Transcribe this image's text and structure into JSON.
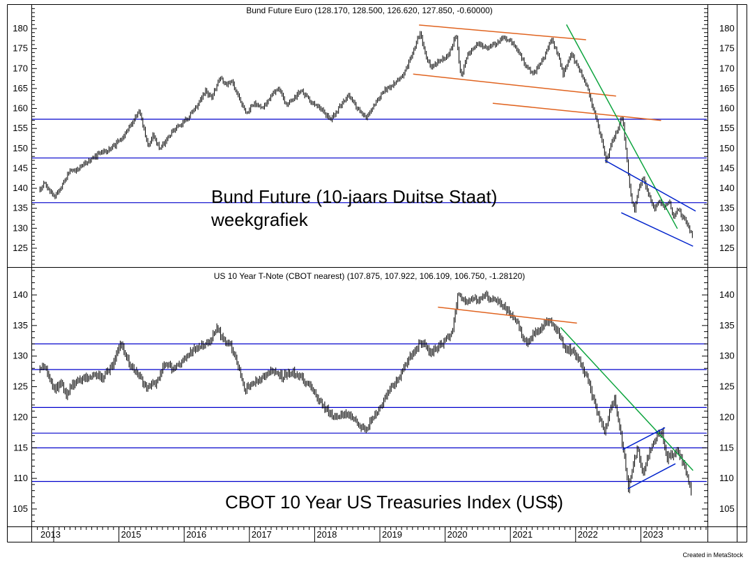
{
  "colors": {
    "background": "#ffffff",
    "price_bars": "#000000",
    "support_line": "#0000cc",
    "trend_orange": "#e0631f",
    "trend_green": "#0da43e",
    "channel_blue": "#0022cc",
    "frame": "#000000",
    "text": "#000000"
  },
  "footer": {
    "credit": "Created in MetaStock"
  },
  "x_axis": {
    "year_labels": [
      "2013",
      "2015",
      "2016",
      "2017",
      "2018",
      "2019",
      "2020",
      "2021",
      "2022",
      "2023"
    ]
  },
  "chart_data": [
    {
      "type": "line",
      "name": "Bund Future Euro",
      "title": "Bund Future Euro (128.170, 128.500, 126.620, 127.850, -0.60000)",
      "label_line1": "Bund Future (10-jaars Duitse Staat)",
      "label_line2": "weekgrafiek",
      "quote": {
        "open": "128.170",
        "high": "128.500",
        "low": "126.620",
        "close": "127.850",
        "change": "-0.60000"
      },
      "ylabel": "",
      "xlabel": "",
      "ylim": [
        121,
        185
      ],
      "x_range": [
        2013.79,
        2023.79
      ],
      "y_ticks": [
        125,
        130,
        135,
        140,
        145,
        150,
        155,
        160,
        165,
        170,
        175,
        180
      ],
      "support_lines": [
        157.3,
        147.6,
        136.4
      ],
      "trendlines": [
        {
          "color": "orange",
          "x1": 2019.6,
          "y1": 180.9,
          "x2": 2022.16,
          "y2": 177.2
        },
        {
          "color": "orange",
          "x1": 2019.51,
          "y1": 168.6,
          "x2": 2022.62,
          "y2": 163.1
        },
        {
          "color": "orange",
          "x1": 2020.73,
          "y1": 161.3,
          "x2": 2023.31,
          "y2": 157.0
        },
        {
          "color": "green",
          "x1": 2021.86,
          "y1": 181.0,
          "x2": 2023.56,
          "y2": 129.9
        },
        {
          "color": "blue",
          "x1": 2022.45,
          "y1": 147.0,
          "x2": 2023.84,
          "y2": 134.3
        },
        {
          "color": "blue",
          "x1": 2022.7,
          "y1": 133.9,
          "x2": 2023.8,
          "y2": 125.5
        }
      ],
      "points": [
        [
          2013.79,
          140.0
        ],
        [
          2013.86,
          141.3
        ],
        [
          2013.94,
          139.2
        ],
        [
          2014.01,
          137.8
        ],
        [
          2014.1,
          139.5
        ],
        [
          2014.22,
          143.8
        ],
        [
          2014.35,
          144.6
        ],
        [
          2014.5,
          146.5
        ],
        [
          2014.65,
          148.2
        ],
        [
          2014.8,
          149.3
        ],
        [
          2014.95,
          151.0
        ],
        [
          2015.1,
          153.5
        ],
        [
          2015.22,
          157.0
        ],
        [
          2015.31,
          159.3
        ],
        [
          2015.38,
          155.0
        ],
        [
          2015.45,
          150.9
        ],
        [
          2015.53,
          153.4
        ],
        [
          2015.62,
          149.8
        ],
        [
          2015.7,
          151.5
        ],
        [
          2015.8,
          153.8
        ],
        [
          2015.92,
          155.5
        ],
        [
          2016.05,
          157.5
        ],
        [
          2016.2,
          160.5
        ],
        [
          2016.33,
          164.3
        ],
        [
          2016.42,
          162.5
        ],
        [
          2016.55,
          167.8
        ],
        [
          2016.63,
          165.8
        ],
        [
          2016.72,
          167.0
        ],
        [
          2016.82,
          163.5
        ],
        [
          2016.95,
          158.9
        ],
        [
          2017.08,
          161.5
        ],
        [
          2017.2,
          159.8
        ],
        [
          2017.33,
          163.2
        ],
        [
          2017.45,
          165.3
        ],
        [
          2017.55,
          160.8
        ],
        [
          2017.67,
          162.5
        ],
        [
          2017.8,
          164.4
        ],
        [
          2017.95,
          161.5
        ],
        [
          2018.1,
          159.6
        ],
        [
          2018.25,
          157.2
        ],
        [
          2018.4,
          160.8
        ],
        [
          2018.53,
          163.4
        ],
        [
          2018.65,
          160.2
        ],
        [
          2018.78,
          157.6
        ],
        [
          2018.92,
          161.0
        ],
        [
          2019.05,
          164.3
        ],
        [
          2019.2,
          166.2
        ],
        [
          2019.35,
          168.0
        ],
        [
          2019.5,
          173.5
        ],
        [
          2019.62,
          179.3
        ],
        [
          2019.7,
          173.0
        ],
        [
          2019.8,
          170.2
        ],
        [
          2019.92,
          172.0
        ],
        [
          2020.05,
          173.0
        ],
        [
          2020.17,
          178.7
        ],
        [
          2020.24,
          167.8
        ],
        [
          2020.35,
          173.5
        ],
        [
          2020.5,
          176.2
        ],
        [
          2020.63,
          175.2
        ],
        [
          2020.75,
          176.0
        ],
        [
          2020.9,
          177.8
        ],
        [
          2021.0,
          177.0
        ],
        [
          2021.12,
          174.5
        ],
        [
          2021.25,
          170.3
        ],
        [
          2021.35,
          168.8
        ],
        [
          2021.5,
          172.0
        ],
        [
          2021.63,
          177.3
        ],
        [
          2021.73,
          173.5
        ],
        [
          2021.81,
          168.5
        ],
        [
          2021.93,
          173.8
        ],
        [
          2022.03,
          170.5
        ],
        [
          2022.15,
          166.8
        ],
        [
          2022.25,
          161.0
        ],
        [
          2022.33,
          157.0
        ],
        [
          2022.42,
          150.5
        ],
        [
          2022.47,
          146.6
        ],
        [
          2022.55,
          151.5
        ],
        [
          2022.65,
          155.0
        ],
        [
          2022.72,
          158.2
        ],
        [
          2022.78,
          148.0
        ],
        [
          2022.85,
          138.0
        ],
        [
          2022.9,
          134.5
        ],
        [
          2022.98,
          140.5
        ],
        [
          2023.04,
          142.6
        ],
        [
          2023.12,
          138.5
        ],
        [
          2023.2,
          134.9
        ],
        [
          2023.28,
          136.8
        ],
        [
          2023.36,
          135.2
        ],
        [
          2023.44,
          136.4
        ],
        [
          2023.5,
          132.9
        ],
        [
          2023.57,
          134.7
        ],
        [
          2023.64,
          132.9
        ],
        [
          2023.7,
          131.5
        ],
        [
          2023.75,
          129.5
        ],
        [
          2023.79,
          127.85
        ]
      ]
    },
    {
      "type": "line",
      "name": "US 10 Year T-Note (CBOT nearest)",
      "title": "US 10 Year T-Note (CBOT nearest) (107.875, 107.922, 106.109, 106.750, -1.28120)",
      "label_line1": "CBOT 10 Year US Treasuries Index (US$)",
      "label_line2": "",
      "quote": {
        "open": "107.875",
        "high": "107.922",
        "low": "106.109",
        "close": "106.750",
        "change": "-1.28120"
      },
      "ylabel": "",
      "xlabel": "",
      "ylim": [
        102,
        141.5
      ],
      "x_range": [
        2013.79,
        2023.78
      ],
      "y_ticks": [
        105,
        110,
        115,
        120,
        125,
        130,
        135,
        140
      ],
      "support_lines": [
        132.0,
        127.8,
        121.6,
        117.4,
        115.0,
        109.5
      ],
      "trendlines": [
        {
          "color": "orange",
          "x1": 2019.89,
          "y1": 138.0,
          "x2": 2022.02,
          "y2": 135.4
        },
        {
          "color": "green",
          "x1": 2021.77,
          "y1": 134.7,
          "x2": 2023.8,
          "y2": 111.3
        },
        {
          "color": "blue",
          "x1": 2022.72,
          "y1": 114.7,
          "x2": 2023.37,
          "y2": 118.3
        },
        {
          "color": "blue",
          "x1": 2022.8,
          "y1": 108.3,
          "x2": 2023.53,
          "y2": 112.4
        }
      ],
      "points": [
        [
          2013.79,
          127.6
        ],
        [
          2013.87,
          128.4
        ],
        [
          2013.95,
          126.0
        ],
        [
          2014.02,
          124.4
        ],
        [
          2014.1,
          125.8
        ],
        [
          2014.2,
          123.6
        ],
        [
          2014.3,
          125.5
        ],
        [
          2014.45,
          126.2
        ],
        [
          2014.6,
          126.9
        ],
        [
          2014.75,
          126.5
        ],
        [
          2014.9,
          128.3
        ],
        [
          2015.03,
          132.0
        ],
        [
          2015.15,
          129.0
        ],
        [
          2015.3,
          127.0
        ],
        [
          2015.45,
          124.7
        ],
        [
          2015.6,
          126.1
        ],
        [
          2015.72,
          129.0
        ],
        [
          2015.85,
          127.8
        ],
        [
          2015.98,
          129.3
        ],
        [
          2016.1,
          130.5
        ],
        [
          2016.25,
          131.8
        ],
        [
          2016.4,
          132.5
        ],
        [
          2016.5,
          134.5
        ],
        [
          2016.6,
          132.8
        ],
        [
          2016.72,
          131.5
        ],
        [
          2016.85,
          127.5
        ],
        [
          2016.93,
          124.5
        ],
        [
          2017.05,
          125.5
        ],
        [
          2017.2,
          126.6
        ],
        [
          2017.35,
          127.8
        ],
        [
          2017.5,
          126.6
        ],
        [
          2017.65,
          127.5
        ],
        [
          2017.8,
          126.3
        ],
        [
          2017.95,
          125.0
        ],
        [
          2018.08,
          122.5
        ],
        [
          2018.2,
          121.0
        ],
        [
          2018.33,
          119.8
        ],
        [
          2018.45,
          120.5
        ],
        [
          2018.6,
          119.9
        ],
        [
          2018.72,
          118.4
        ],
        [
          2018.8,
          118.1
        ],
        [
          2018.92,
          120.5
        ],
        [
          2019.05,
          122.5
        ],
        [
          2019.2,
          125.3
        ],
        [
          2019.32,
          127.0
        ],
        [
          2019.45,
          129.5
        ],
        [
          2019.55,
          131.2
        ],
        [
          2019.65,
          132.4
        ],
        [
          2019.78,
          130.7
        ],
        [
          2019.9,
          131.5
        ],
        [
          2020.0,
          132.3
        ],
        [
          2020.12,
          134.5
        ],
        [
          2020.2,
          140.6
        ],
        [
          2020.3,
          138.9
        ],
        [
          2020.45,
          139.3
        ],
        [
          2020.6,
          139.8
        ],
        [
          2020.75,
          139.3
        ],
        [
          2020.9,
          138.3
        ],
        [
          2021.0,
          137.0
        ],
        [
          2021.12,
          135.0
        ],
        [
          2021.24,
          132.1
        ],
        [
          2021.35,
          133.5
        ],
        [
          2021.48,
          134.8
        ],
        [
          2021.6,
          136.0
        ],
        [
          2021.72,
          134.2
        ],
        [
          2021.85,
          131.3
        ],
        [
          2021.97,
          130.6
        ],
        [
          2022.08,
          129.0
        ],
        [
          2022.18,
          126.2
        ],
        [
          2022.28,
          122.5
        ],
        [
          2022.38,
          119.5
        ],
        [
          2022.45,
          117.6
        ],
        [
          2022.53,
          121.0
        ],
        [
          2022.6,
          123.3
        ],
        [
          2022.68,
          118.0
        ],
        [
          2022.75,
          113.5
        ],
        [
          2022.81,
          108.5
        ],
        [
          2022.9,
          113.0
        ],
        [
          2022.96,
          115.0
        ],
        [
          2023.03,
          110.5
        ],
        [
          2023.1,
          113.5
        ],
        [
          2023.18,
          115.6
        ],
        [
          2023.27,
          117.2
        ],
        [
          2023.33,
          117.6
        ],
        [
          2023.4,
          113.2
        ],
        [
          2023.48,
          114.0
        ],
        [
          2023.55,
          114.7
        ],
        [
          2023.62,
          113.2
        ],
        [
          2023.68,
          111.8
        ],
        [
          2023.73,
          109.8
        ],
        [
          2023.78,
          106.75
        ]
      ]
    }
  ]
}
